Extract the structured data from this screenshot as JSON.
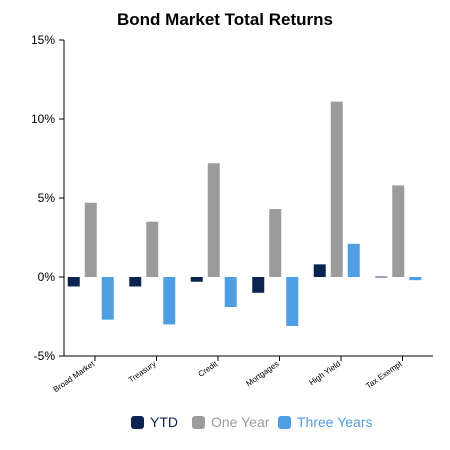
{
  "chart_data": {
    "type": "bar",
    "title": "Bond Market Total Returns",
    "categories": [
      "Broad Market",
      "Treasury",
      "Credit",
      "Mortgages",
      "High Yield",
      "Tax Exempt"
    ],
    "series": [
      {
        "name": "YTD",
        "color": "#0a2351",
        "values": [
          -0.6,
          -0.6,
          -0.3,
          -1.0,
          0.8,
          0.0
        ]
      },
      {
        "name": "One Year",
        "color": "#9b9b9b",
        "values": [
          4.7,
          3.5,
          7.2,
          4.3,
          11.1,
          5.8
        ]
      },
      {
        "name": "Three Years",
        "color": "#4f9de3",
        "values": [
          -2.7,
          -3.0,
          -1.9,
          -3.1,
          2.1,
          -0.2
        ]
      }
    ],
    "ylim": [
      -5,
      15
    ],
    "yticks": [
      "-5%",
      "0%",
      "5%",
      "10%",
      "15%"
    ],
    "xlabel": "",
    "ylabel": "",
    "grid": false,
    "legend_position": "bottom"
  }
}
